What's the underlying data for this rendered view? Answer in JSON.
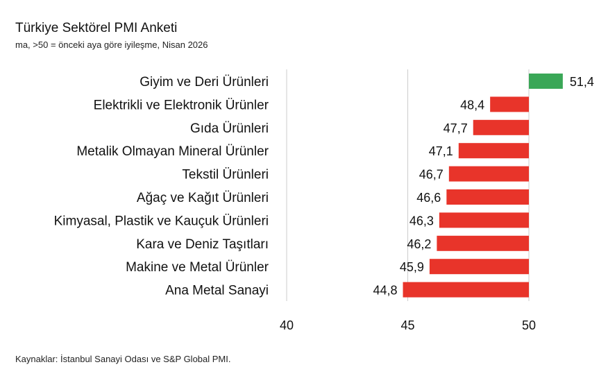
{
  "title": "Türkiye Sektörel PMI Anketi",
  "subtitle": "ma, >50 = önceki aya göre iyileşme, Nisan 2026",
  "source": "Kaynaklar: İstanbul Sanayi Odası ve S&P Global PMI.",
  "colors": {
    "positive": "#3aa757",
    "negative": "#e8342a",
    "gridline": "#cccccc"
  },
  "chart_data": {
    "type": "bar",
    "orientation": "horizontal",
    "title": "Türkiye Sektörel PMI Anketi",
    "subtitle": "ma, >50 = önceki aya göre iyileşme, Nisan 2026",
    "baseline": 50,
    "xlim": [
      40,
      50
    ],
    "xticks": [
      "40",
      "45",
      "50"
    ],
    "grid": true,
    "categories": [
      "Giyim ve Deri Ürünleri",
      "Elektrikli ve Elektronik Ürünler",
      "Gıda Ürünleri",
      "Metalik Olmayan Mineral Ürünler",
      "Tekstil Ürünleri",
      "Ağaç ve Kağıt Ürünleri",
      "Kimyasal, Plastik ve Kauçuk Ürünleri",
      "Kara ve Deniz Taşıtları",
      "Makine ve Metal Ürünler",
      "Ana Metal Sanayi"
    ],
    "values": [
      51.4,
      48.4,
      47.7,
      47.1,
      46.7,
      46.6,
      46.3,
      46.2,
      45.9,
      44.8
    ],
    "value_labels": [
      "51,4",
      "48,4",
      "47,7",
      "47,1",
      "46,7",
      "46,6",
      "46,3",
      "46,2",
      "45,9",
      "44,8"
    ]
  }
}
